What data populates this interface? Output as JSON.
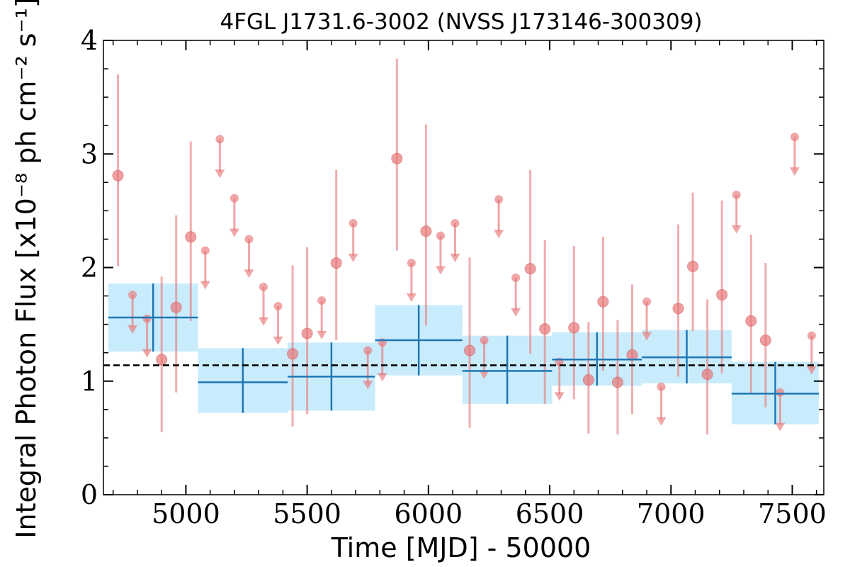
{
  "chart_data": {
    "type": "scatter",
    "title": "4FGL J1731.6-3002 (NVSS J173146-300309)",
    "xlabel": "Time [MJD] - 50000",
    "ylabel": "Integral Photon Flux [x10⁻⁸ ph cm⁻² s⁻¹]",
    "xlim": [
      4660,
      7630
    ],
    "ylim": [
      0,
      4.0
    ],
    "xticks": [
      5000,
      5500,
      6000,
      6500,
      7000,
      7500
    ],
    "yticks": [
      0,
      1,
      2,
      3,
      4
    ],
    "grid": false,
    "mean_flux": 1.14,
    "colors": {
      "points": "#e8787a",
      "bins_line": "#1f77b4",
      "bins_fill": "#c9ecfc",
      "mean_line": "#000000"
    },
    "monthly_points": [
      {
        "x": 4720,
        "y": 2.81,
        "lo": 2.01,
        "hi": 3.7
      },
      {
        "x": 4780,
        "y": 1.76,
        "ul": true
      },
      {
        "x": 4840,
        "y": 1.55,
        "ul": true
      },
      {
        "x": 4900,
        "y": 1.19,
        "lo": 0.55,
        "hi": 1.92
      },
      {
        "x": 4960,
        "y": 1.65,
        "lo": 0.9,
        "hi": 2.46
      },
      {
        "x": 5020,
        "y": 2.27,
        "lo": 1.53,
        "hi": 3.11
      },
      {
        "x": 5080,
        "y": 2.15,
        "ul": true
      },
      {
        "x": 5140,
        "y": 3.13,
        "ul": true
      },
      {
        "x": 5200,
        "y": 2.61,
        "ul": true
      },
      {
        "x": 5260,
        "y": 2.25,
        "ul": true
      },
      {
        "x": 5320,
        "y": 1.83,
        "ul": true
      },
      {
        "x": 5380,
        "y": 1.66,
        "ul": true
      },
      {
        "x": 5440,
        "y": 1.24,
        "lo": 0.6,
        "hi": 2.02
      },
      {
        "x": 5500,
        "y": 1.42,
        "lo": 0.71,
        "hi": 2.18
      },
      {
        "x": 5560,
        "y": 1.71,
        "ul": true
      },
      {
        "x": 5620,
        "y": 2.04,
        "lo": 1.36,
        "hi": 2.86
      },
      {
        "x": 5690,
        "y": 2.39,
        "ul": true
      },
      {
        "x": 5750,
        "y": 1.27,
        "ul": true
      },
      {
        "x": 5810,
        "y": 1.34,
        "ul": true
      },
      {
        "x": 5870,
        "y": 2.96,
        "lo": 2.15,
        "hi": 3.84
      },
      {
        "x": 5930,
        "y": 2.04,
        "ul": true
      },
      {
        "x": 5990,
        "y": 2.32,
        "lo": 1.49,
        "hi": 3.26
      },
      {
        "x": 6050,
        "y": 2.28,
        "ul": true
      },
      {
        "x": 6110,
        "y": 2.39,
        "ul": true
      },
      {
        "x": 6170,
        "y": 1.27,
        "lo": 0.59,
        "hi": 2.09
      },
      {
        "x": 6230,
        "y": 1.36,
        "ul": true
      },
      {
        "x": 6290,
        "y": 2.6,
        "ul": true
      },
      {
        "x": 6360,
        "y": 1.91,
        "ul": true
      },
      {
        "x": 6420,
        "y": 1.99,
        "lo": 1.24,
        "hi": 2.86
      },
      {
        "x": 6480,
        "y": 1.46,
        "lo": 0.8,
        "hi": 2.24
      },
      {
        "x": 6540,
        "y": 1.17,
        "ul": true
      },
      {
        "x": 6600,
        "y": 1.47,
        "lo": 0.84,
        "hi": 2.19
      },
      {
        "x": 6660,
        "y": 1.01,
        "lo": 0.54,
        "hi": 1.52
      },
      {
        "x": 6720,
        "y": 1.7,
        "lo": 1.09,
        "hi": 2.27
      },
      {
        "x": 6780,
        "y": 0.99,
        "lo": 0.53,
        "hi": 1.54
      },
      {
        "x": 6840,
        "y": 1.23,
        "lo": 0.71,
        "hi": 1.85
      },
      {
        "x": 6900,
        "y": 1.7,
        "ul": true
      },
      {
        "x": 6960,
        "y": 0.95,
        "ul": true
      },
      {
        "x": 7030,
        "y": 1.64,
        "lo": 1.04,
        "hi": 2.38
      },
      {
        "x": 7090,
        "y": 2.01,
        "lo": 1.44,
        "hi": 2.66
      },
      {
        "x": 7150,
        "y": 1.06,
        "lo": 0.53,
        "hi": 1.72
      },
      {
        "x": 7210,
        "y": 1.76,
        "lo": 1.07,
        "hi": 2.59
      },
      {
        "x": 7270,
        "y": 2.64,
        "ul": true
      },
      {
        "x": 7330,
        "y": 1.53,
        "lo": 0.89,
        "hi": 2.29
      },
      {
        "x": 7390,
        "y": 1.36,
        "lo": 0.77,
        "hi": 2.04
      },
      {
        "x": 7450,
        "y": 0.9,
        "ul": true
      },
      {
        "x": 7510,
        "y": 3.15,
        "ul": true
      },
      {
        "x": 7580,
        "y": 1.4,
        "ul": true
      }
    ],
    "yearly_bins": [
      {
        "x0": 4680,
        "x1": 5050,
        "y": 1.56,
        "lo": 1.26,
        "hi": 1.86
      },
      {
        "x0": 5050,
        "x1": 5420,
        "y": 0.99,
        "lo": 0.72,
        "hi": 1.29
      },
      {
        "x0": 5420,
        "x1": 5780,
        "y": 1.04,
        "lo": 0.74,
        "hi": 1.34
      },
      {
        "x0": 5780,
        "x1": 6140,
        "y": 1.36,
        "lo": 1.05,
        "hi": 1.67
      },
      {
        "x0": 6140,
        "x1": 6510,
        "y": 1.09,
        "lo": 0.8,
        "hi": 1.4
      },
      {
        "x0": 6510,
        "x1": 6880,
        "y": 1.19,
        "lo": 0.96,
        "hi": 1.43
      },
      {
        "x0": 6880,
        "x1": 7250,
        "y": 1.21,
        "lo": 0.98,
        "hi": 1.45
      },
      {
        "x0": 7250,
        "x1": 7610,
        "y": 0.89,
        "lo": 0.62,
        "hi": 1.17
      }
    ]
  }
}
